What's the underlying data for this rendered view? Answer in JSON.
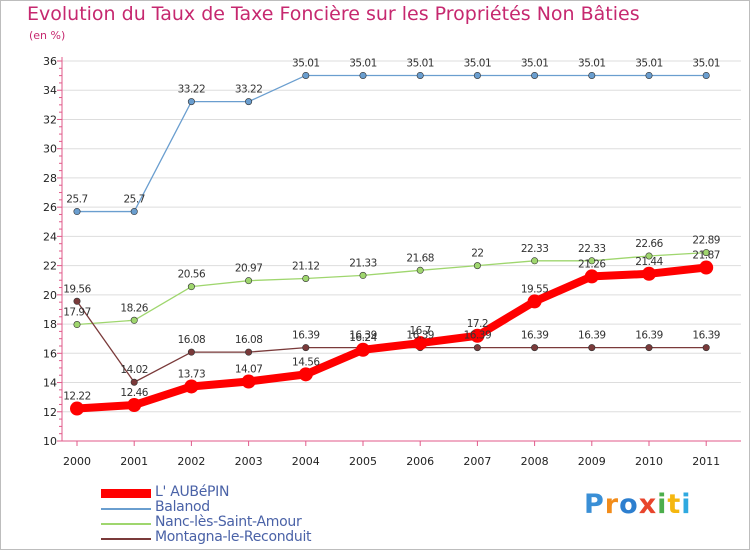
{
  "header": {
    "title": "Evolution du Taux de Taxe Foncière sur les Propriétés Non Bâties",
    "unit": "(en %)"
  },
  "logo": {
    "text": "Proxiti",
    "colors": [
      "#3a8fd6",
      "#f28c1a",
      "#2d7fcf",
      "#e8452c",
      "#4cae4c",
      "#f5b70f",
      "#2fa9e0"
    ]
  },
  "chart_data": {
    "type": "line",
    "title": "Evolution du Taux de Taxe Foncière sur les Propriétés Non Bâties",
    "ylabel": "(en %)",
    "xlabel": "",
    "x": [
      "2000",
      "2001",
      "2002",
      "2003",
      "2004",
      "2005",
      "2006",
      "2007",
      "2008",
      "2009",
      "2010",
      "2011"
    ],
    "ylim": [
      10,
      36
    ],
    "yticks": [
      10,
      12,
      14,
      16,
      18,
      20,
      22,
      24,
      26,
      28,
      30,
      32,
      34,
      36
    ],
    "grid": "horizontal",
    "legend_position": "bottom-left",
    "series": [
      {
        "name": "L' AUBéPIN",
        "color": "#ff0000",
        "emphasis": true,
        "values": [
          12.22,
          12.46,
          13.73,
          14.07,
          14.56,
          16.24,
          16.7,
          17.2,
          19.55,
          21.26,
          21.44,
          21.87
        ],
        "labels": [
          "12.22",
          "12.46",
          "13.73",
          "14.07",
          "14.56",
          "16.24",
          "16.7",
          "17.2",
          "19.55",
          "21.26",
          "21.44",
          "21.87"
        ]
      },
      {
        "name": "Balanod",
        "color": "#6a9ecf",
        "values": [
          25.7,
          25.7,
          33.22,
          33.22,
          35.01,
          35.01,
          35.01,
          35.01,
          35.01,
          35.01,
          35.01,
          35.01
        ],
        "labels": [
          "25.7",
          "25.7",
          "33.22",
          "33.22",
          "35.01",
          "35.01",
          "35.01",
          "35.01",
          "35.01",
          "35.01",
          "35.01",
          "35.01"
        ]
      },
      {
        "name": "Nanc-lès-Saint-Amour",
        "color": "#9fd66e",
        "values": [
          17.97,
          18.26,
          20.56,
          20.97,
          21.12,
          21.33,
          21.68,
          22,
          22.33,
          22.33,
          22.66,
          22.89
        ],
        "labels": [
          "17.97",
          "18.26",
          "20.56",
          "20.97",
          "21.12",
          "21.33",
          "21.68",
          "22",
          "22.33",
          "22.33",
          "22.66",
          "22.89"
        ]
      },
      {
        "name": "Montagna-le-Reconduit",
        "color": "#7a3a3a",
        "values": [
          19.56,
          14.02,
          16.08,
          16.08,
          16.39,
          16.39,
          16.39,
          16.39,
          16.39,
          16.39,
          16.39,
          16.39
        ],
        "labels": [
          "19.56",
          "14.02",
          "16.08",
          "16.08",
          "16.39",
          "16.39",
          "16.39",
          "16.39",
          "16.39",
          "16.39",
          "16.39",
          "16.39"
        ]
      }
    ]
  }
}
